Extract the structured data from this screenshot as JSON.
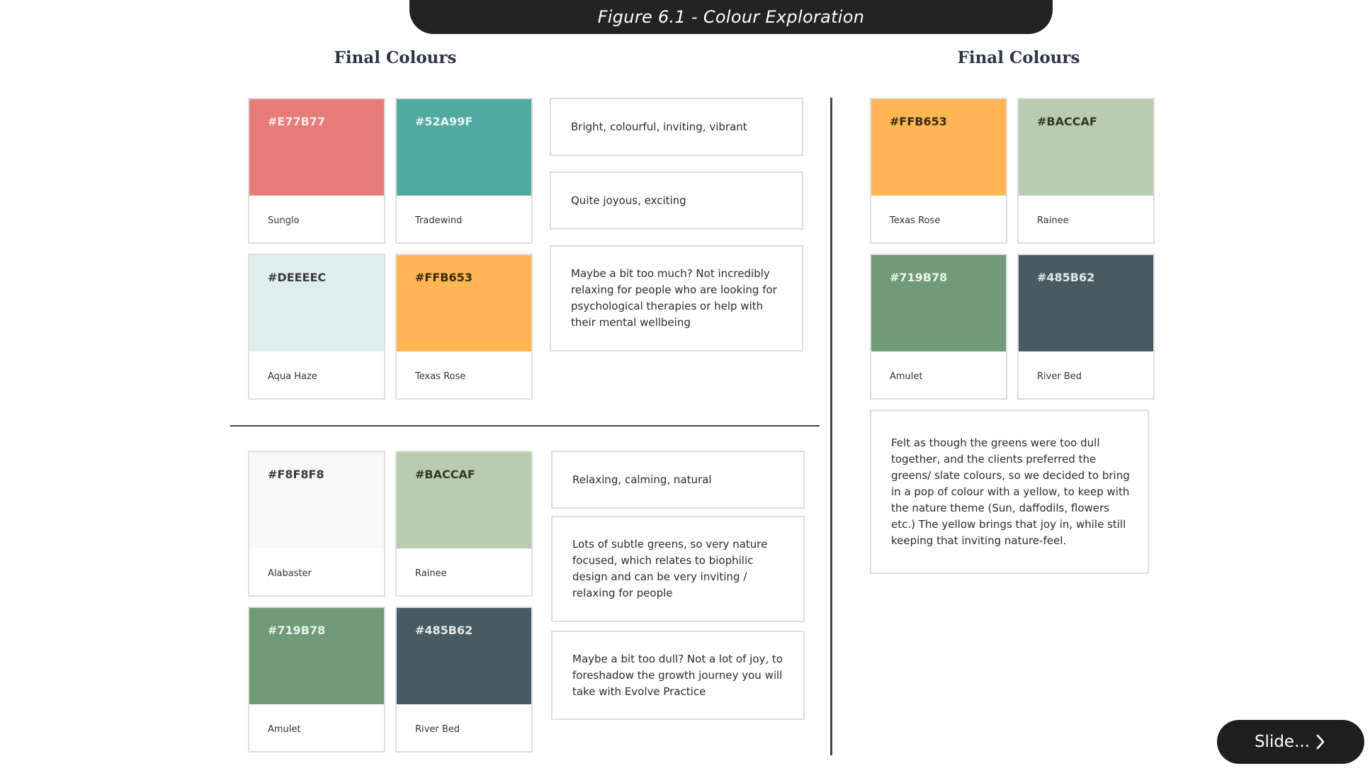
{
  "banner": {
    "title": "Figure 6.1 - Colour Exploration"
  },
  "headings": {
    "left": "Final Colours",
    "right": "Final Colours"
  },
  "palette_top": [
    {
      "hex": "#E77B77",
      "name": "Sunglo",
      "color": "#E77B77",
      "text_color": "#fbe9e8"
    },
    {
      "hex": "#52A99F",
      "name": "Tradewind",
      "color": "#52A99F",
      "text_color": "#e6f4f2"
    },
    {
      "hex": "#DEEEEC",
      "name": "Aqua Haze",
      "color": "#DEEEEC",
      "text_color": "#3a3a3a"
    },
    {
      "hex": "#FFB653",
      "name": "Texas Rose",
      "color": "#FFB653",
      "text_color": "#3a2a10"
    }
  ],
  "notes_top": [
    "Bright, colourful, inviting, vibrant",
    "Quite joyous, exciting",
    "Maybe a bit too much? Not incredibly relaxing for people who are looking for psychological therapies or help with their mental wellbeing"
  ],
  "palette_bottom": [
    {
      "hex": "#F8F8F8",
      "name": "Alabaster",
      "color": "#F8F8F8",
      "text_color": "#3a3a3a"
    },
    {
      "hex": "#BACCAF",
      "name": "Rainee",
      "color": "#BACCAF",
      "text_color": "#2f3a2a"
    },
    {
      "hex": "#719B78",
      "name": "Amulet",
      "color": "#719B78",
      "text_color": "#eaf2eb"
    },
    {
      "hex": "#485B62",
      "name": "River Bed",
      "color": "#485B62",
      "text_color": "#e3e8ea"
    }
  ],
  "notes_bottom": [
    "Relaxing, calming, natural",
    "Lots of subtle greens, so very nature focused, which relates to biophilic design and can be very inviting / relaxing for people",
    "Maybe a bit too dull? Not a lot of joy, to foreshadow the growth journey you will take with Evolve Practice"
  ],
  "palette_final": [
    {
      "hex": "#FFB653",
      "name": "Texas Rose",
      "color": "#FFB653",
      "text_color": "#3a2a10"
    },
    {
      "hex": "#BACCAF",
      "name": "Rainee",
      "color": "#BACCAF",
      "text_color": "#2f3a2a"
    },
    {
      "hex": "#719B78",
      "name": "Amulet",
      "color": "#719B78",
      "text_color": "#eaf2eb"
    },
    {
      "hex": "#485B62",
      "name": "River Bed",
      "color": "#485B62",
      "text_color": "#e3e8ea"
    }
  ],
  "note_final": "Felt as though the greens were too dull together, and the clients preferred the greens/ slate colours, so we decided to bring in a pop of colour with a yellow, to keep with the nature theme (Sun, daffodils, flowers etc.) The yellow brings that joy in, while still keeping that inviting nature-feel.",
  "slide_button": {
    "label": "Slide...",
    "icon": "chevron-right-icon"
  }
}
